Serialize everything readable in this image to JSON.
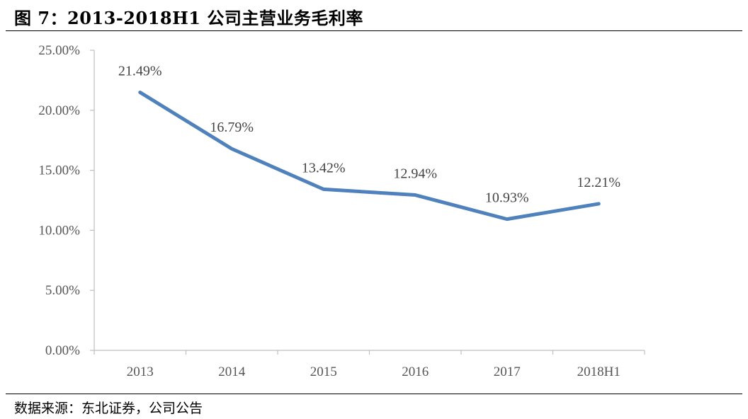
{
  "header": {
    "title": "图 7：2013-2018H1 公司主营业务毛利率"
  },
  "footer": {
    "source": "数据来源：东北证券，公司公告"
  },
  "colors": {
    "line": "#4F81BD",
    "axis": "#bfbfbf",
    "text": "#555555"
  },
  "chart_data": {
    "type": "line",
    "title": "",
    "xlabel": "",
    "ylabel": "",
    "categories": [
      "2013",
      "2014",
      "2015",
      "2016",
      "2017",
      "2018H1"
    ],
    "series": [
      {
        "values": [
          21.49,
          16.79,
          13.42,
          12.94,
          10.93,
          12.21
        ]
      }
    ],
    "data_labels": [
      "21.49%",
      "16.79%",
      "13.42%",
      "12.94%",
      "10.93%",
      "12.21%"
    ],
    "ylim": [
      0,
      25
    ],
    "y_ticks": [
      "0.00%",
      "5.00%",
      "10.00%",
      "15.00%",
      "20.00%",
      "25.00%"
    ],
    "y_tick_values": [
      0,
      5,
      10,
      15,
      20,
      25
    ],
    "grid": false,
    "legend": "none"
  }
}
